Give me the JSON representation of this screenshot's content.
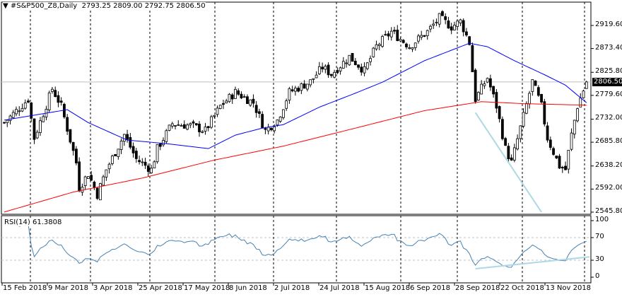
{
  "header": {
    "symbol_timeframe": "#S&P500_Z8,Daily",
    "open": "2793.25",
    "high": "2809.00",
    "low": "2792.75",
    "close": "2806.50"
  },
  "rsi": {
    "label": "RSI(14)",
    "value": "61.3808",
    "levels": [
      "100",
      "70",
      "30",
      "0"
    ]
  },
  "price_axis": [
    "2919.60",
    "2873.40",
    "2825.80",
    "2779.60",
    "2732.00",
    "2685.80",
    "2638.20",
    "2592.00",
    "2545.80"
  ],
  "current_price": "2806.50",
  "time_axis": [
    "15 Feb 2018",
    "9 Mar 2018",
    "3 Apr 2018",
    "25 Apr 2018",
    "17 May 2018",
    "8 Jun 2018",
    "2 Jul 2018",
    "24 Jul 2018",
    "15 Aug 2018",
    "6 Sep 2018",
    "28 Sep 2018",
    "22 Oct 2018",
    "13 Nov 2018"
  ],
  "colors": {
    "ma_fast": "#0000ff",
    "ma_slow": "#ff0000",
    "rsi": "#4682b4",
    "trendline": "#add8e6",
    "grid": "#000000"
  },
  "chart_data": {
    "type": "candlestick",
    "bars": 195,
    "price_range": [
      2545.8,
      2919.6
    ],
    "last_bar": {
      "open": 2793.25,
      "high": 2809.0,
      "low": 2792.75,
      "close": 2806.5
    },
    "close_waypoints": [
      [
        0,
        2725
      ],
      [
        8,
        2772
      ],
      [
        10,
        2694
      ],
      [
        16,
        2793
      ],
      [
        19,
        2758
      ],
      [
        24,
        2645
      ],
      [
        25,
        2595
      ],
      [
        28,
        2623
      ],
      [
        31,
        2581
      ],
      [
        34,
        2631
      ],
      [
        40,
        2701
      ],
      [
        44,
        2652
      ],
      [
        49,
        2631
      ],
      [
        51,
        2673
      ],
      [
        56,
        2723
      ],
      [
        62,
        2719
      ],
      [
        67,
        2709
      ],
      [
        72,
        2758
      ],
      [
        77,
        2786
      ],
      [
        83,
        2765
      ],
      [
        87,
        2709
      ],
      [
        91,
        2730
      ],
      [
        95,
        2786
      ],
      [
        102,
        2807
      ],
      [
        106,
        2836
      ],
      [
        109,
        2822
      ],
      [
        115,
        2857
      ],
      [
        120,
        2829
      ],
      [
        124,
        2878
      ],
      [
        129,
        2907
      ],
      [
        135,
        2878
      ],
      [
        141,
        2907
      ],
      [
        145,
        2935
      ],
      [
        149,
        2917
      ],
      [
        152,
        2928
      ],
      [
        155,
        2885
      ],
      [
        157,
        2772
      ],
      [
        161,
        2815
      ],
      [
        164,
        2758
      ],
      [
        167,
        2673
      ],
      [
        169,
        2645
      ],
      [
        172,
        2715
      ],
      [
        176,
        2807
      ],
      [
        179,
        2758
      ],
      [
        181,
        2694
      ],
      [
        185,
        2638
      ],
      [
        187,
        2631
      ],
      [
        189,
        2701
      ],
      [
        191,
        2758
      ],
      [
        193,
        2790
      ],
      [
        194,
        2806.5
      ]
    ],
    "ma50_waypoints": [
      [
        0,
        2730
      ],
      [
        21,
        2751
      ],
      [
        28,
        2725
      ],
      [
        41,
        2690
      ],
      [
        54,
        2683
      ],
      [
        68,
        2673
      ],
      [
        77,
        2700
      ],
      [
        86,
        2714
      ],
      [
        93,
        2721
      ],
      [
        105,
        2756
      ],
      [
        117,
        2784
      ],
      [
        126,
        2806
      ],
      [
        140,
        2849
      ],
      [
        149,
        2870
      ],
      [
        155,
        2884
      ],
      [
        161,
        2877
      ],
      [
        170,
        2849
      ],
      [
        180,
        2821
      ],
      [
        187,
        2800
      ],
      [
        194,
        2765
      ]
    ],
    "ma200_waypoints": [
      [
        0,
        2546
      ],
      [
        23,
        2586
      ],
      [
        46,
        2614
      ],
      [
        70,
        2650
      ],
      [
        93,
        2678
      ],
      [
        117,
        2714
      ],
      [
        140,
        2749
      ],
      [
        159,
        2767
      ],
      [
        173,
        2763
      ],
      [
        194,
        2760
      ]
    ],
    "trendlines": [
      {
        "panel": "price",
        "from": [
          157,
          2745
        ],
        "to": [
          179,
          2545.8
        ]
      },
      {
        "panel": "rsi",
        "from": [
          157,
          15
        ],
        "to": [
          195,
          36
        ]
      }
    ]
  }
}
